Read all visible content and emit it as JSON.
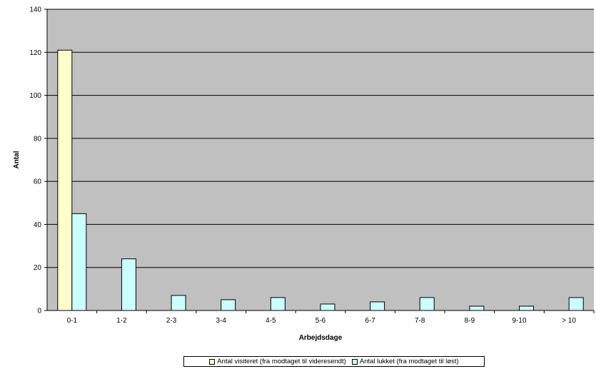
{
  "chart_data": {
    "type": "bar",
    "categories": [
      "0-1",
      "1-2",
      "2-3",
      "3-4",
      "4-5",
      "5-6",
      "6-7",
      "7-8",
      "8-9",
      "9-10",
      "> 10"
    ],
    "series": [
      {
        "name": "Antal visiteret (fra modtaget til videresendt)",
        "color": "#ffffcc",
        "values": [
          121,
          0,
          0,
          0,
          0,
          0,
          0,
          0,
          0,
          0,
          0
        ]
      },
      {
        "name": "Antal lukket (fra modtaget til løst)",
        "color": "#ccffff",
        "values": [
          45,
          24,
          7,
          5,
          6,
          3,
          4,
          6,
          2,
          2,
          6
        ]
      }
    ],
    "xlabel": "Arbejdsdage",
    "ylabel": "Antal",
    "ylim": [
      0,
      140
    ],
    "yticks": [
      0,
      20,
      40,
      60,
      80,
      100,
      120,
      140
    ],
    "grid": true,
    "plot_background": "#c0c0c0",
    "legend_position": "bottom"
  }
}
